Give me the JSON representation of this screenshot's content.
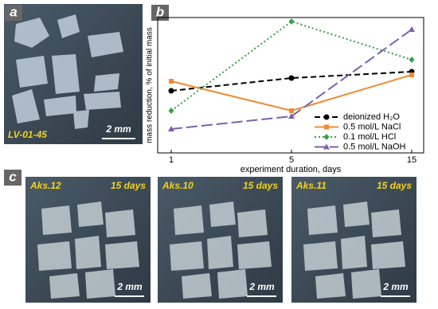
{
  "panels": {
    "a": {
      "label": "a",
      "sample": "LV-01-45",
      "scale": "2 mm"
    },
    "c": {
      "label": "c",
      "photos": [
        {
          "sample": "Aks.12",
          "time": "15 days",
          "scale": "2 mm"
        },
        {
          "sample": "Aks.10",
          "time": "15 days",
          "scale": "2 mm"
        },
        {
          "sample": "Aks.11",
          "time": "15 days",
          "scale": "2 mm"
        }
      ]
    }
  },
  "chart_data": {
    "type": "line",
    "panel_label": "b",
    "x_label": "experiment duration, days",
    "y_label": "mass reduction, % of initial mass",
    "categories": [
      "1",
      "5",
      "15"
    ],
    "ylim": [
      0,
      6.8
    ],
    "legend": "lower right",
    "series": [
      {
        "name": "deionized H₂O",
        "color": "#000000",
        "dash": "7,4",
        "marker": "circle",
        "values": [
          3.12,
          3.76,
          4.08
        ]
      },
      {
        "name": "0.5 mol/L NaCl",
        "color": "#f08a30",
        "dash": "",
        "marker": "square",
        "values": [
          3.6,
          2.12,
          3.92
        ]
      },
      {
        "name": "0.1 mol/L HCl",
        "color": "#3aa048",
        "dash": "2,3",
        "marker": "diamond",
        "values": [
          2.12,
          6.6,
          4.68
        ]
      },
      {
        "name": "0.5 mol/L NaOH",
        "color": "#7b62a8",
        "dash": "14,5",
        "marker": "triangle",
        "values": [
          1.2,
          1.84,
          6.2
        ]
      }
    ]
  }
}
